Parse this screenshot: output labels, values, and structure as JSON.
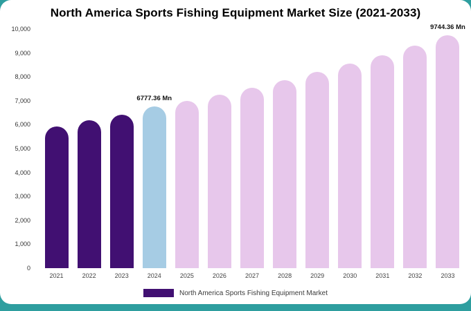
{
  "banner_color": "#2E9E9F",
  "title": "North America Sports Fishing Equipment Market Size (2021-2033)",
  "legend": {
    "label": "North America Sports Fishing Equipment Market",
    "swatch_color": "#411072"
  },
  "chart_data": {
    "type": "bar",
    "title": "North America Sports Fishing Equipment Market Size (2021-2033)",
    "xlabel": "",
    "ylabel": "",
    "categories": [
      "2021",
      "2022",
      "2023",
      "2024",
      "2025",
      "2026",
      "2027",
      "2028",
      "2029",
      "2030",
      "2031",
      "2032",
      "2033"
    ],
    "values": [
      5920,
      6180,
      6430,
      6777.36,
      7000,
      7250,
      7550,
      7860,
      8200,
      8550,
      8900,
      9300,
      9744.36
    ],
    "ylim": [
      0,
      10000
    ],
    "ytick_interval": 1000,
    "yticks": [
      "0",
      "1,000",
      "2,000",
      "3,000",
      "4,000",
      "5,000",
      "6,000",
      "7,000",
      "8,000",
      "9,000",
      "10,000"
    ],
    "grid": false,
    "legend_position": "bottom",
    "palette": {
      "past": "#411072",
      "current": "#A6CCE4",
      "forecast": "#E7C7EB"
    },
    "segments": [
      "past",
      "past",
      "past",
      "current",
      "forecast",
      "forecast",
      "forecast",
      "forecast",
      "forecast",
      "forecast",
      "forecast",
      "forecast",
      "forecast"
    ],
    "annotations": [
      {
        "category": "2024",
        "text": "6777.36 Mn"
      },
      {
        "category": "2033",
        "text": "9744.36 Mn"
      }
    ]
  }
}
